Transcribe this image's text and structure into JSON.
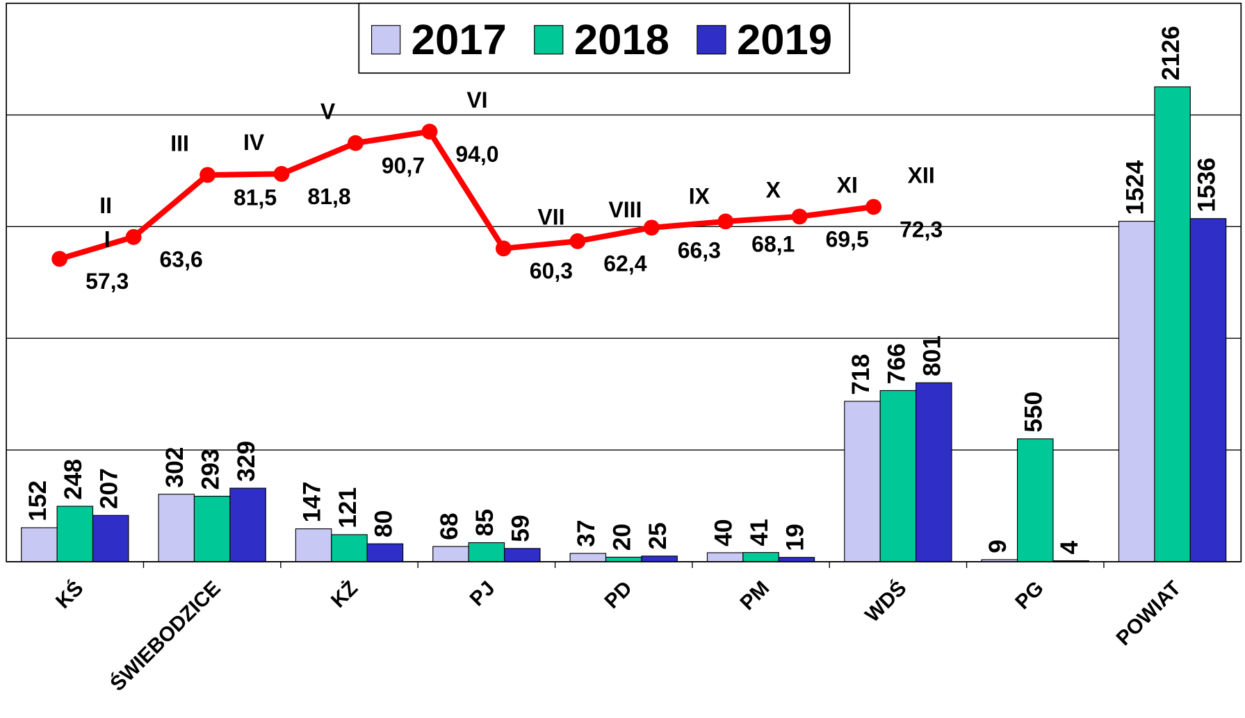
{
  "chart_data": [
    {
      "type": "bar",
      "categories": [
        "KŚ",
        "ŚWIEBODZICE",
        "KŻ",
        "PJ",
        "PD",
        "PM",
        "WDŚ",
        "PG",
        "POWIAT"
      ],
      "series": [
        {
          "name": "2017",
          "color": "#c8c8f5",
          "values": [
            152,
            302,
            147,
            68,
            37,
            40,
            718,
            9,
            1524
          ]
        },
        {
          "name": "2018",
          "color": "#00c896",
          "values": [
            248,
            293,
            121,
            85,
            20,
            41,
            766,
            550,
            2126
          ]
        },
        {
          "name": "2019",
          "color": "#2f2fc8",
          "values": [
            207,
            329,
            80,
            59,
            25,
            19,
            801,
            4,
            1536
          ]
        }
      ],
      "ylim": [
        0,
        2500
      ],
      "yticks": [
        0,
        500,
        1000,
        1500,
        2000,
        2500
      ],
      "grid": true,
      "legend": "top"
    },
    {
      "type": "line",
      "categories": [
        "I",
        "II",
        "III",
        "IV",
        "V",
        "VI",
        "VII",
        "VIII",
        "IX",
        "X",
        "XI",
        "XII"
      ],
      "values": [
        57.3,
        63.6,
        81.5,
        81.8,
        90.7,
        94.0,
        60.3,
        62.4,
        66.3,
        68.1,
        69.5,
        72.3
      ],
      "value_labels": [
        "57,3",
        "63,6",
        "81,5",
        "81,8",
        "90,7",
        "94,0",
        "60,3",
        "62,4",
        "66,3",
        "68,1",
        "69,5",
        "72,3"
      ],
      "color": "#ff0000",
      "ylim": [
        -30,
        131
      ]
    }
  ]
}
